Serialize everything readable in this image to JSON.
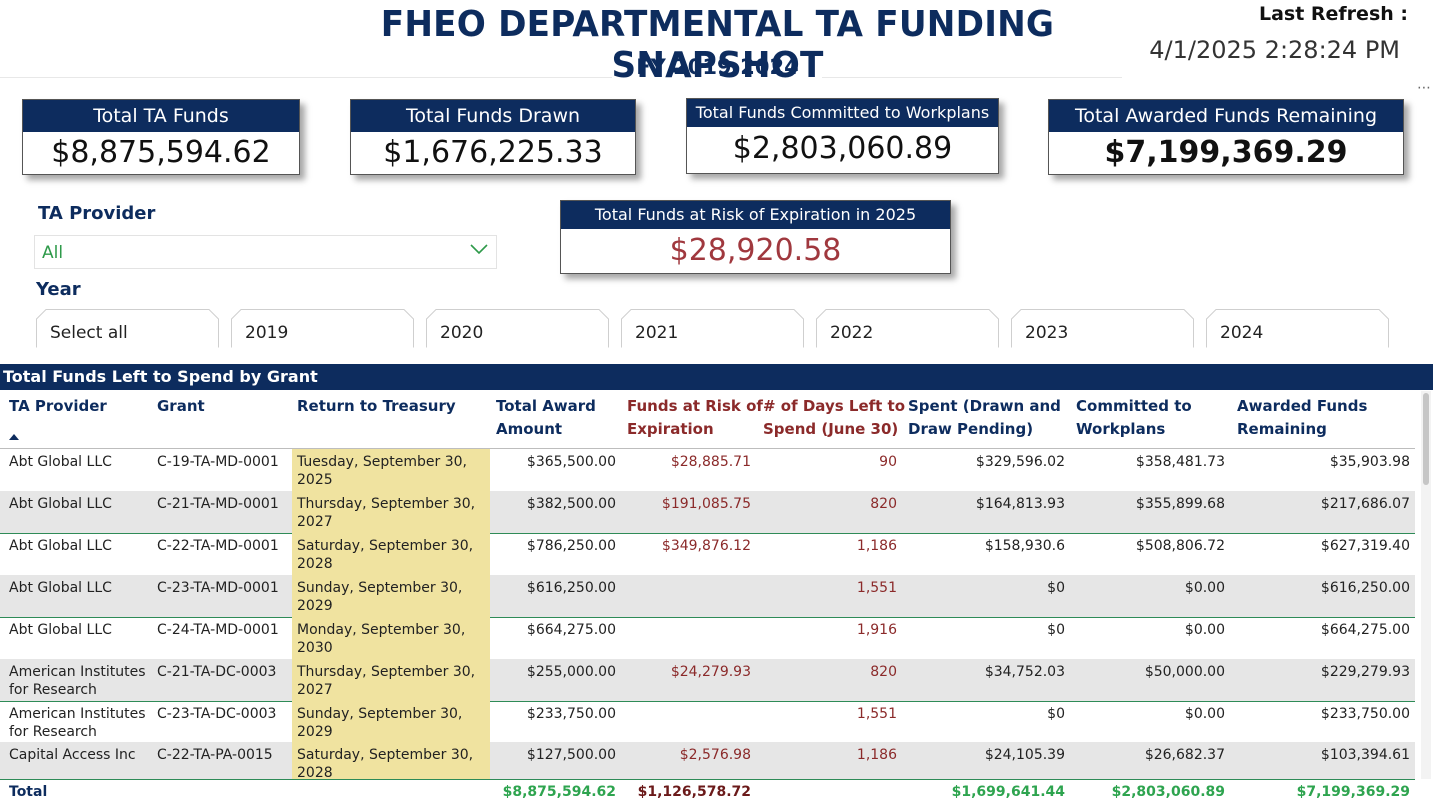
{
  "header": {
    "title": "FHEO DEPARTMENTAL TA FUNDING SNAPSHOT",
    "subtitle": "FY 2019-2024",
    "refresh_label": "Last Refresh :",
    "refresh_value": "4/1/2025 2:28:24 PM",
    "more_icon": "more-options-icon"
  },
  "cards": {
    "total_ta_funds": {
      "label": "Total TA Funds",
      "value": "$8,875,594.62"
    },
    "total_funds_drawn": {
      "label": "Total Funds Drawn",
      "value": "$1,676,225.33"
    },
    "committed": {
      "label": "Total Funds Committed to Workplans",
      "value": "$2,803,060.89"
    },
    "remaining": {
      "label": "Total Awarded Funds Remaining",
      "value": "$7,199,369.29"
    },
    "at_risk": {
      "label": "Total Funds at Risk of Expiration in 2025",
      "value": "$28,920.58",
      "value_color": "#a0383e"
    }
  },
  "filters": {
    "provider_label": "TA Provider",
    "provider_value": "All",
    "year_label": "Year",
    "years": [
      "Select all",
      "2019",
      "2020",
      "2021",
      "2022",
      "2023",
      "2024"
    ]
  },
  "table": {
    "title": "Total Funds Left to Spend by Grant",
    "columns": {
      "provider": "TA Provider",
      "grant": "Grant",
      "treasury": "Return to Treasury",
      "award_1": "Total Award",
      "award_2": "Amount",
      "risk_1": "Funds at Risk of",
      "risk_2": "Expiration",
      "days_1": "# of Days Left to",
      "days_2": "Spend (June 30)",
      "spent_1": "Spent (Drawn and",
      "spent_2": "Draw Pending)",
      "committed_1": "Committed to",
      "committed_2": "Workplans",
      "remaining_1": "Awarded Funds",
      "remaining_2": "Remaining"
    },
    "rows": [
      {
        "p1": "Abt Global LLC",
        "p2": "",
        "grant": "C-19-TA-MD-0001",
        "t1": "Tuesday, September 30,",
        "t2": "2025",
        "award": "$365,500.00",
        "risk": "$28,885.71",
        "days": "90",
        "spent": "$329,596.02",
        "committed": "$358,481.73",
        "remaining": "$35,903.98"
      },
      {
        "p1": "Abt Global LLC",
        "p2": "",
        "grant": "C-21-TA-MD-0001",
        "t1": "Thursday, September 30,",
        "t2": "2027",
        "award": "$382,500.00",
        "risk": "$191,085.75",
        "days": "820",
        "spent": "$164,813.93",
        "committed": "$355,899.68",
        "remaining": "$217,686.07"
      },
      {
        "p1": "Abt Global LLC",
        "p2": "",
        "grant": "C-22-TA-MD-0001",
        "t1": "Saturday, September 30,",
        "t2": "2028",
        "award": "$786,250.00",
        "risk": "$349,876.12",
        "days": "1,186",
        "spent": "$158,930.6",
        "committed": "$508,806.72",
        "remaining": "$627,319.40"
      },
      {
        "p1": "Abt Global LLC",
        "p2": "",
        "grant": "C-23-TA-MD-0001",
        "t1": "Sunday, September 30,",
        "t2": "2029",
        "award": "$616,250.00",
        "risk": "",
        "days": "1,551",
        "spent": "$0",
        "committed": "$0.00",
        "remaining": "$616,250.00"
      },
      {
        "p1": "Abt Global LLC",
        "p2": "",
        "grant": "C-24-TA-MD-0001",
        "t1": "Monday, September 30,",
        "t2": "2030",
        "award": "$664,275.00",
        "risk": "",
        "days": "1,916",
        "spent": "$0",
        "committed": "$0.00",
        "remaining": "$664,275.00"
      },
      {
        "p1": "American Institutes",
        "p2": "for Research",
        "grant": "C-21-TA-DC-0003",
        "t1": "Thursday, September 30,",
        "t2": "2027",
        "award": "$255,000.00",
        "risk": "$24,279.93",
        "days": "820",
        "spent": "$34,752.03",
        "committed": "$50,000.00",
        "remaining": "$229,279.93"
      },
      {
        "p1": "American Institutes",
        "p2": "for Research",
        "grant": "C-23-TA-DC-0003",
        "t1": "Sunday, September 30,",
        "t2": "2029",
        "award": "$233,750.00",
        "risk": "",
        "days": "1,551",
        "spent": "$0",
        "committed": "$0.00",
        "remaining": "$233,750.00"
      },
      {
        "p1": "Capital Access Inc",
        "p2": "",
        "grant": "C-22-TA-PA-0015",
        "t1": "Saturday, September 30,",
        "t2": "2028",
        "award": "$127,500.00",
        "risk": "$2,576.98",
        "days": "1,186",
        "spent": "$24,105.39",
        "committed": "$26,682.37",
        "remaining": "$103,394.61"
      }
    ],
    "totals": {
      "label": "Total",
      "award": "$8,875,594.62",
      "risk": "$1,126,578.72",
      "spent": "$1,699,641.44",
      "committed": "$2,803,060.89",
      "remaining": "$7,199,369.29"
    }
  },
  "colors": {
    "navy": "#0d2c5e",
    "risk_red": "#8b2a2a",
    "total_green": "#2ea44f",
    "treasury_highlight": "#f0e3a0",
    "row_shade": "#e6e6e6"
  }
}
